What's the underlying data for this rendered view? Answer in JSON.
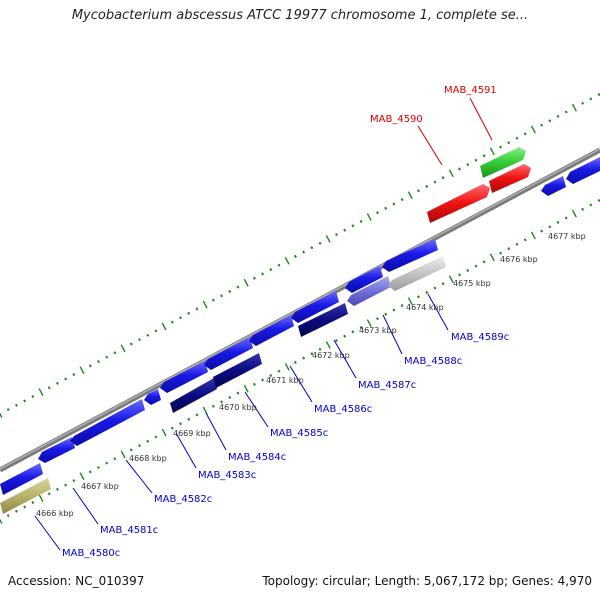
{
  "title": "Mycobacterium abscessus ATCC 19977 chromosome 1, complete se...",
  "footer": {
    "accession": "Accession: NC_010397",
    "summary": "Topology: circular; Length: 5,067,172 bp; Genes: 4,970"
  },
  "ruler_labels": [
    "4666 kbp",
    "4667 kbp",
    "4668 kbp",
    "4669 kbp",
    "4670 kbp",
    "4671 kbp",
    "4672 kbp",
    "4673 kbp",
    "4674 kbp",
    "4675 kbp",
    "4676 kbp",
    "4677 kbp"
  ],
  "gene_labels": {
    "MAB_4591": "MAB_4591",
    "MAB_4590": "MAB_4590",
    "MAB_4589c": "MAB_4589c",
    "MAB_4588c": "MAB_4588c",
    "MAB_4587c": "MAB_4587c",
    "MAB_4586c": "MAB_4586c",
    "MAB_4585c": "MAB_4585c",
    "MAB_4584c": "MAB_4584c",
    "MAB_4583c": "MAB_4583c",
    "MAB_4582c": "MAB_4582c",
    "MAB_4581c": "MAB_4581c",
    "MAB_4580c": "MAB_4580c"
  },
  "colors": {
    "forward_label": "#dd0000",
    "reverse_label": "#0000cc",
    "blue": "#1f1fe6",
    "dark_blue": "#0b0b80",
    "light_purple": "#7070d8",
    "grey": "#bdbdbd",
    "olive": "#b7b36a",
    "red": "#ee1111",
    "green": "#33cc33",
    "backbone": "#8a8a8a",
    "tick": "#1a8a1a"
  }
}
